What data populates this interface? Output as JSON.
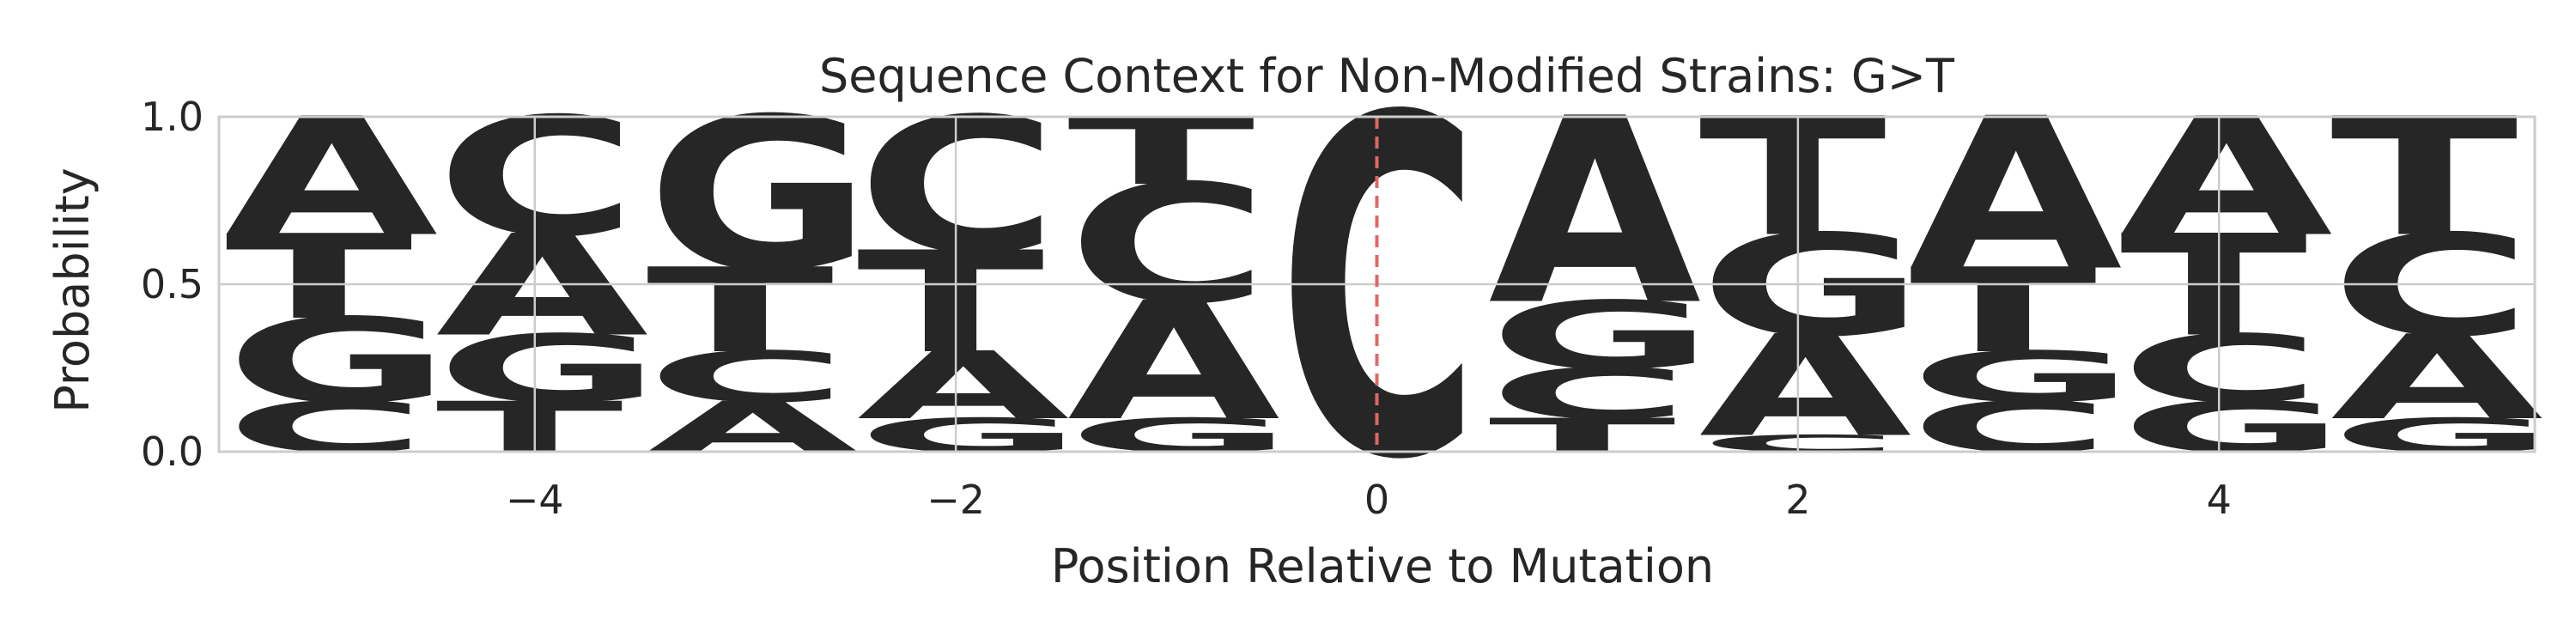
{
  "chart_data": {
    "type": "sequence_logo",
    "title": "Sequence Context for Non-Modified Strains: G>T",
    "xlabel": "Position Relative to Mutation",
    "ylabel": "Probability",
    "xlim": [
      -5.5,
      5.5
    ],
    "ylim": [
      0,
      1
    ],
    "xticks": [
      -4,
      -2,
      0,
      2,
      4
    ],
    "xtick_labels": [
      "−4",
      "−2",
      "0",
      "2",
      "4"
    ],
    "yticks": [
      0,
      0.5,
      1
    ],
    "ytick_labels": [
      "0.0",
      "0.5",
      "1.0"
    ],
    "grid": true,
    "mutation_marker": {
      "position": 0,
      "style": "dashed",
      "color": "#e06666"
    },
    "colors": {
      "A": "#008000",
      "C": "#0000ff",
      "G": "#ffa500",
      "T": "#ff0000"
    },
    "positions": [
      {
        "position": -5,
        "stack": [
          {
            "base": "C",
            "value": 0.15
          },
          {
            "base": "G",
            "value": 0.25
          },
          {
            "base": "T",
            "value": 0.25
          },
          {
            "base": "A",
            "value": 0.35
          }
        ]
      },
      {
        "position": -4,
        "stack": [
          {
            "base": "T",
            "value": 0.15
          },
          {
            "base": "G",
            "value": 0.2
          },
          {
            "base": "A",
            "value": 0.3
          },
          {
            "base": "C",
            "value": 0.35
          }
        ]
      },
      {
        "position": -3,
        "stack": [
          {
            "base": "A",
            "value": 0.15
          },
          {
            "base": "C",
            "value": 0.15
          },
          {
            "base": "T",
            "value": 0.25
          },
          {
            "base": "G",
            "value": 0.45
          }
        ]
      },
      {
        "position": -2,
        "stack": [
          {
            "base": "G",
            "value": 0.1
          },
          {
            "base": "A",
            "value": 0.2
          },
          {
            "base": "T",
            "value": 0.3
          },
          {
            "base": "C",
            "value": 0.4
          }
        ]
      },
      {
        "position": -1,
        "stack": [
          {
            "base": "G",
            "value": 0.1
          },
          {
            "base": "A",
            "value": 0.35
          },
          {
            "base": "C",
            "value": 0.35
          },
          {
            "base": "T",
            "value": 0.2
          }
        ]
      },
      {
        "position": 0,
        "stack": [
          {
            "base": "C",
            "value": 1.0
          }
        ]
      },
      {
        "position": 1,
        "stack": [
          {
            "base": "T",
            "value": 0.1
          },
          {
            "base": "C",
            "value": 0.15
          },
          {
            "base": "G",
            "value": 0.2
          },
          {
            "base": "A",
            "value": 0.55
          }
        ]
      },
      {
        "position": 2,
        "stack": [
          {
            "base": "C",
            "value": 0.05
          },
          {
            "base": "A",
            "value": 0.3
          },
          {
            "base": "G",
            "value": 0.3
          },
          {
            "base": "T",
            "value": 0.35
          }
        ]
      },
      {
        "position": 3,
        "stack": [
          {
            "base": "C",
            "value": 0.15
          },
          {
            "base": "G",
            "value": 0.15
          },
          {
            "base": "T",
            "value": 0.25
          },
          {
            "base": "A",
            "value": 0.45
          }
        ]
      },
      {
        "position": 4,
        "stack": [
          {
            "base": "G",
            "value": 0.15
          },
          {
            "base": "C",
            "value": 0.2
          },
          {
            "base": "T",
            "value": 0.3
          },
          {
            "base": "A",
            "value": 0.35
          }
        ]
      },
      {
        "position": 5,
        "stack": [
          {
            "base": "G",
            "value": 0.1
          },
          {
            "base": "A",
            "value": 0.25
          },
          {
            "base": "C",
            "value": 0.3
          },
          {
            "base": "T",
            "value": 0.35
          }
        ]
      }
    ]
  }
}
